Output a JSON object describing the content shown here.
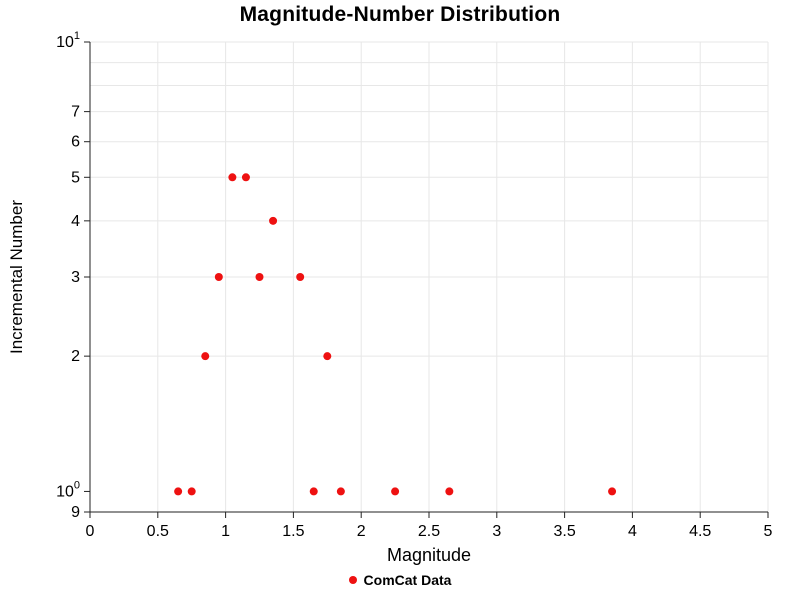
{
  "chart_data": {
    "type": "scatter",
    "title": "Magnitude-Number Distribution",
    "xlabel": "Magnitude",
    "ylabel": "Incremental Number",
    "legend": [
      {
        "name": "ComCat Data",
        "color": "#ee1111"
      }
    ],
    "marker_color": "#ee1111",
    "grid": true,
    "x_axis": {
      "min": 0,
      "max": 5,
      "ticks": [
        0,
        0.5,
        1,
        1.5,
        2,
        2.5,
        3,
        3.5,
        4,
        4.5,
        5
      ],
      "tick_labels": [
        "0",
        "0.5",
        "1",
        "1.5",
        "2",
        "2.5",
        "3",
        "3.5",
        "4",
        "4.5",
        "5"
      ]
    },
    "y_axis": {
      "scale": "log",
      "min": 0.9,
      "max": 10,
      "grid_values": [
        2,
        3,
        4,
        5,
        6,
        7,
        8,
        9,
        10
      ],
      "ticks": [
        {
          "v": 10,
          "label": "10",
          "sup": "1"
        },
        {
          "v": 7,
          "label": "7"
        },
        {
          "v": 6,
          "label": "6"
        },
        {
          "v": 5,
          "label": "5"
        },
        {
          "v": 4,
          "label": "4"
        },
        {
          "v": 3,
          "label": "3"
        },
        {
          "v": 2,
          "label": "2"
        },
        {
          "v": 1,
          "label": "10",
          "sup": "0"
        },
        {
          "v": 0.9,
          "label": "9"
        }
      ]
    },
    "series": [
      {
        "name": "ComCat Data",
        "points": [
          {
            "x": 0.65,
            "y": 1
          },
          {
            "x": 0.75,
            "y": 1
          },
          {
            "x": 0.85,
            "y": 2
          },
          {
            "x": 0.95,
            "y": 3
          },
          {
            "x": 1.05,
            "y": 5
          },
          {
            "x": 1.15,
            "y": 5
          },
          {
            "x": 1.25,
            "y": 3
          },
          {
            "x": 1.35,
            "y": 4
          },
          {
            "x": 1.55,
            "y": 3
          },
          {
            "x": 1.65,
            "y": 1
          },
          {
            "x": 1.75,
            "y": 2
          },
          {
            "x": 1.85,
            "y": 1
          },
          {
            "x": 2.25,
            "y": 1
          },
          {
            "x": 2.65,
            "y": 1
          },
          {
            "x": 3.85,
            "y": 1
          }
        ]
      }
    ]
  }
}
